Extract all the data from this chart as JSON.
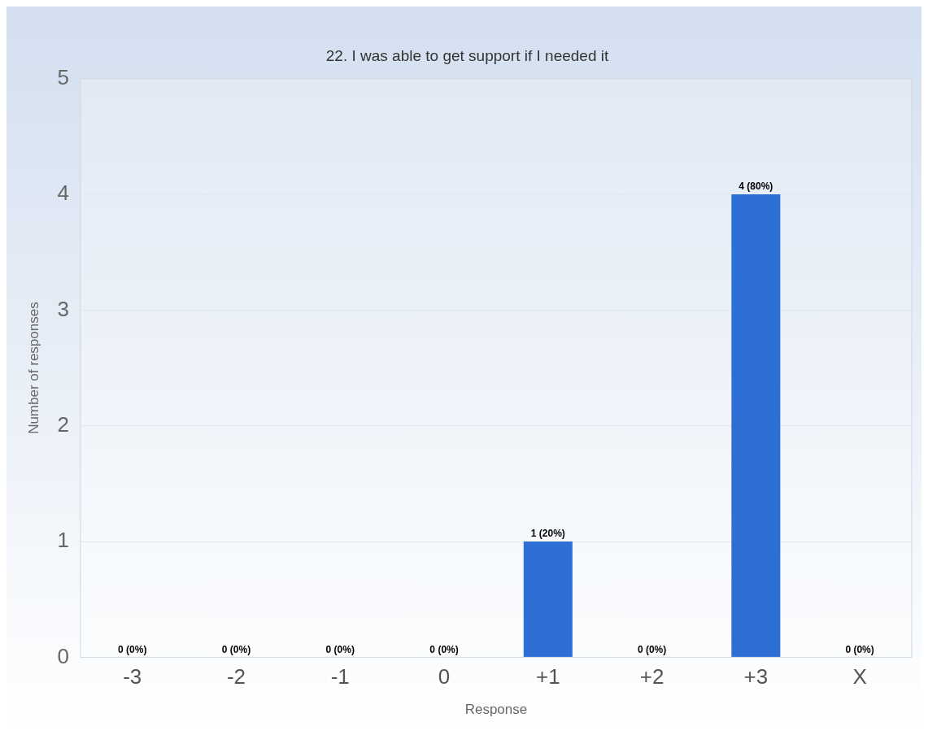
{
  "chart_data": {
    "type": "bar",
    "title": "22. I was able to get support if I needed it",
    "xlabel": "Response",
    "ylabel": "Number of responses",
    "categories": [
      "-3",
      "-2",
      "-1",
      "0",
      "+1",
      "+2",
      "+3",
      "X"
    ],
    "values": [
      0,
      0,
      0,
      0,
      1,
      0,
      4,
      0
    ],
    "value_labels": [
      "0 (0%)",
      "0 (0%)",
      "0 (0%)",
      "0 (0%)",
      "1 (20%)",
      "0 (0%)",
      "4 (80%)",
      "0 (0%)"
    ],
    "color": "#2e6fd6",
    "ylim": [
      0,
      5
    ],
    "yticks": [
      0,
      1,
      2,
      3,
      4,
      5
    ],
    "grid": "y",
    "legend": false
  }
}
